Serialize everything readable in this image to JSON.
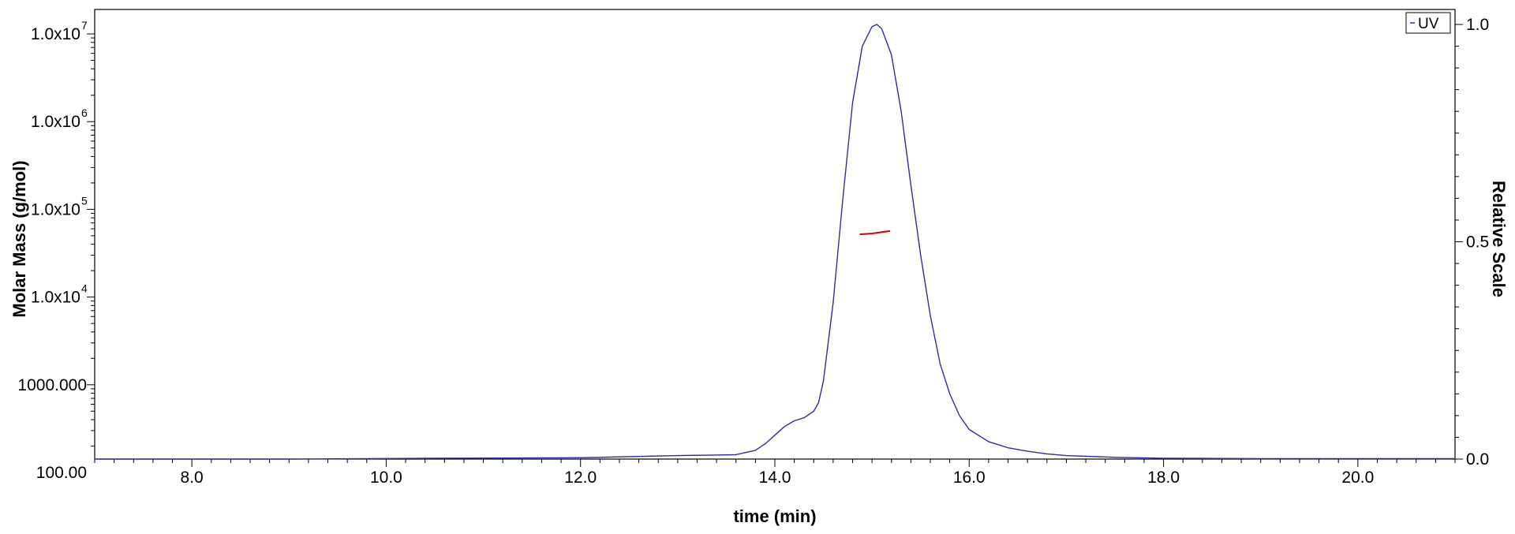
{
  "chart_data": {
    "type": "line",
    "xlabel": "time (min)",
    "ylabel": "Molar Mass (g/mol)",
    "y2label": "Relative Scale",
    "xlim": [
      7.0,
      21.0
    ],
    "ylim": [
      100,
      10000000
    ],
    "ylog": true,
    "y2lim": [
      0.0,
      1.0
    ],
    "grid": false,
    "legend": {
      "position": "top-right",
      "entries": [
        "UV"
      ]
    },
    "x_ticks": [
      "8.0",
      "10.0",
      "12.0",
      "14.0",
      "16.0",
      "18.0",
      "20.0"
    ],
    "x_tick_values": [
      8,
      10,
      12,
      14,
      16,
      18,
      20
    ],
    "y_ticks": [
      {
        "value": 10000000,
        "base": "1.0x10",
        "exp": "7"
      },
      {
        "value": 1000000,
        "base": "1.0x10",
        "exp": "6"
      },
      {
        "value": 100000,
        "base": "1.0x10",
        "exp": "5"
      },
      {
        "value": 10000,
        "base": "1.0x10",
        "exp": "4"
      },
      {
        "value": 1000,
        "base": "1000.000",
        "exp": ""
      },
      {
        "value": 100,
        "base": "100.00",
        "exp": ""
      }
    ],
    "y2_ticks": [
      "0.0",
      "0.5",
      "1.0"
    ],
    "y2_tick_values": [
      0.0,
      0.5,
      1.0
    ],
    "series": [
      {
        "name": "UV",
        "axis": "right",
        "color": "#2e2e9e",
        "x": [
          7.0,
          9.0,
          10.5,
          12.0,
          13.0,
          13.6,
          13.8,
          13.9,
          14.0,
          14.1,
          14.2,
          14.3,
          14.4,
          14.45,
          14.5,
          14.6,
          14.7,
          14.8,
          14.9,
          15.0,
          15.05,
          15.1,
          15.2,
          15.3,
          15.4,
          15.5,
          15.6,
          15.7,
          15.8,
          15.9,
          16.0,
          16.2,
          16.4,
          16.6,
          16.8,
          17.0,
          17.5,
          18.0,
          19.0,
          20.0,
          21.0
        ],
        "y": [
          0.0,
          0.0,
          0.002,
          0.003,
          0.008,
          0.01,
          0.02,
          0.035,
          0.055,
          0.075,
          0.088,
          0.095,
          0.11,
          0.13,
          0.18,
          0.36,
          0.6,
          0.82,
          0.95,
          0.995,
          1.0,
          0.99,
          0.93,
          0.8,
          0.63,
          0.47,
          0.33,
          0.22,
          0.15,
          0.1,
          0.068,
          0.04,
          0.026,
          0.018,
          0.012,
          0.008,
          0.004,
          0.002,
          0.001,
          0.001,
          0.001
        ]
      },
      {
        "name": "",
        "axis": "left",
        "color": "#cc0000",
        "x": [
          14.88,
          14.95,
          15.0,
          15.05,
          15.1,
          15.18
        ],
        "y": [
          52000,
          52500,
          53000,
          54000,
          55000,
          56500
        ]
      }
    ]
  }
}
